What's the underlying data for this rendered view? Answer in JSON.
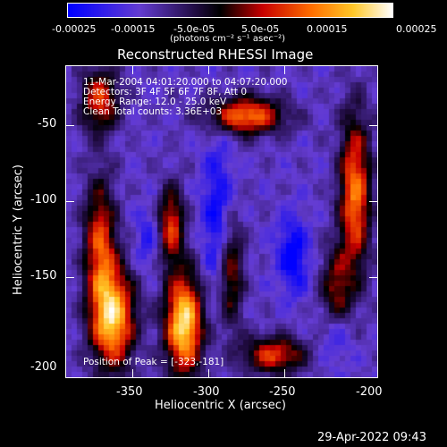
{
  "colorbar": {
    "tick_labels": [
      "-0.00025",
      "-0.00015",
      "-5.0e-05",
      "5.0e-05",
      "0.00015",
      "0.00025"
    ],
    "units": "(photons cm⁻² s⁻¹ asec⁻²)",
    "colors": [
      "#0000ff",
      "#6d3bd0",
      "#000000",
      "#ff0000",
      "#ff9900",
      "#ffffff"
    ]
  },
  "plot": {
    "title": "Reconstructed RHESSI Image",
    "info_lines": [
      "11-Mar-2004 04:01:20.000 to 04:07:20.000",
      "Detectors: 3F 4F 5F 6F 7F 8F, Att 0",
      "Energy Range: 12.0 - 25.0 keV",
      "Clean    Total counts: 3.36E+03"
    ],
    "peak_label": "Position of Peak = [-323,-181]",
    "xlabel": "Heliocentric X (arcsec)",
    "ylabel": "Heliocentric Y (arcsec)",
    "x_ticks": [
      "-350",
      "-300",
      "-250",
      "-200"
    ],
    "y_ticks": [
      "-50",
      "-100",
      "-150",
      "-200"
    ]
  },
  "footer": {
    "timestamp": "29-Apr-2022 09:43"
  }
}
